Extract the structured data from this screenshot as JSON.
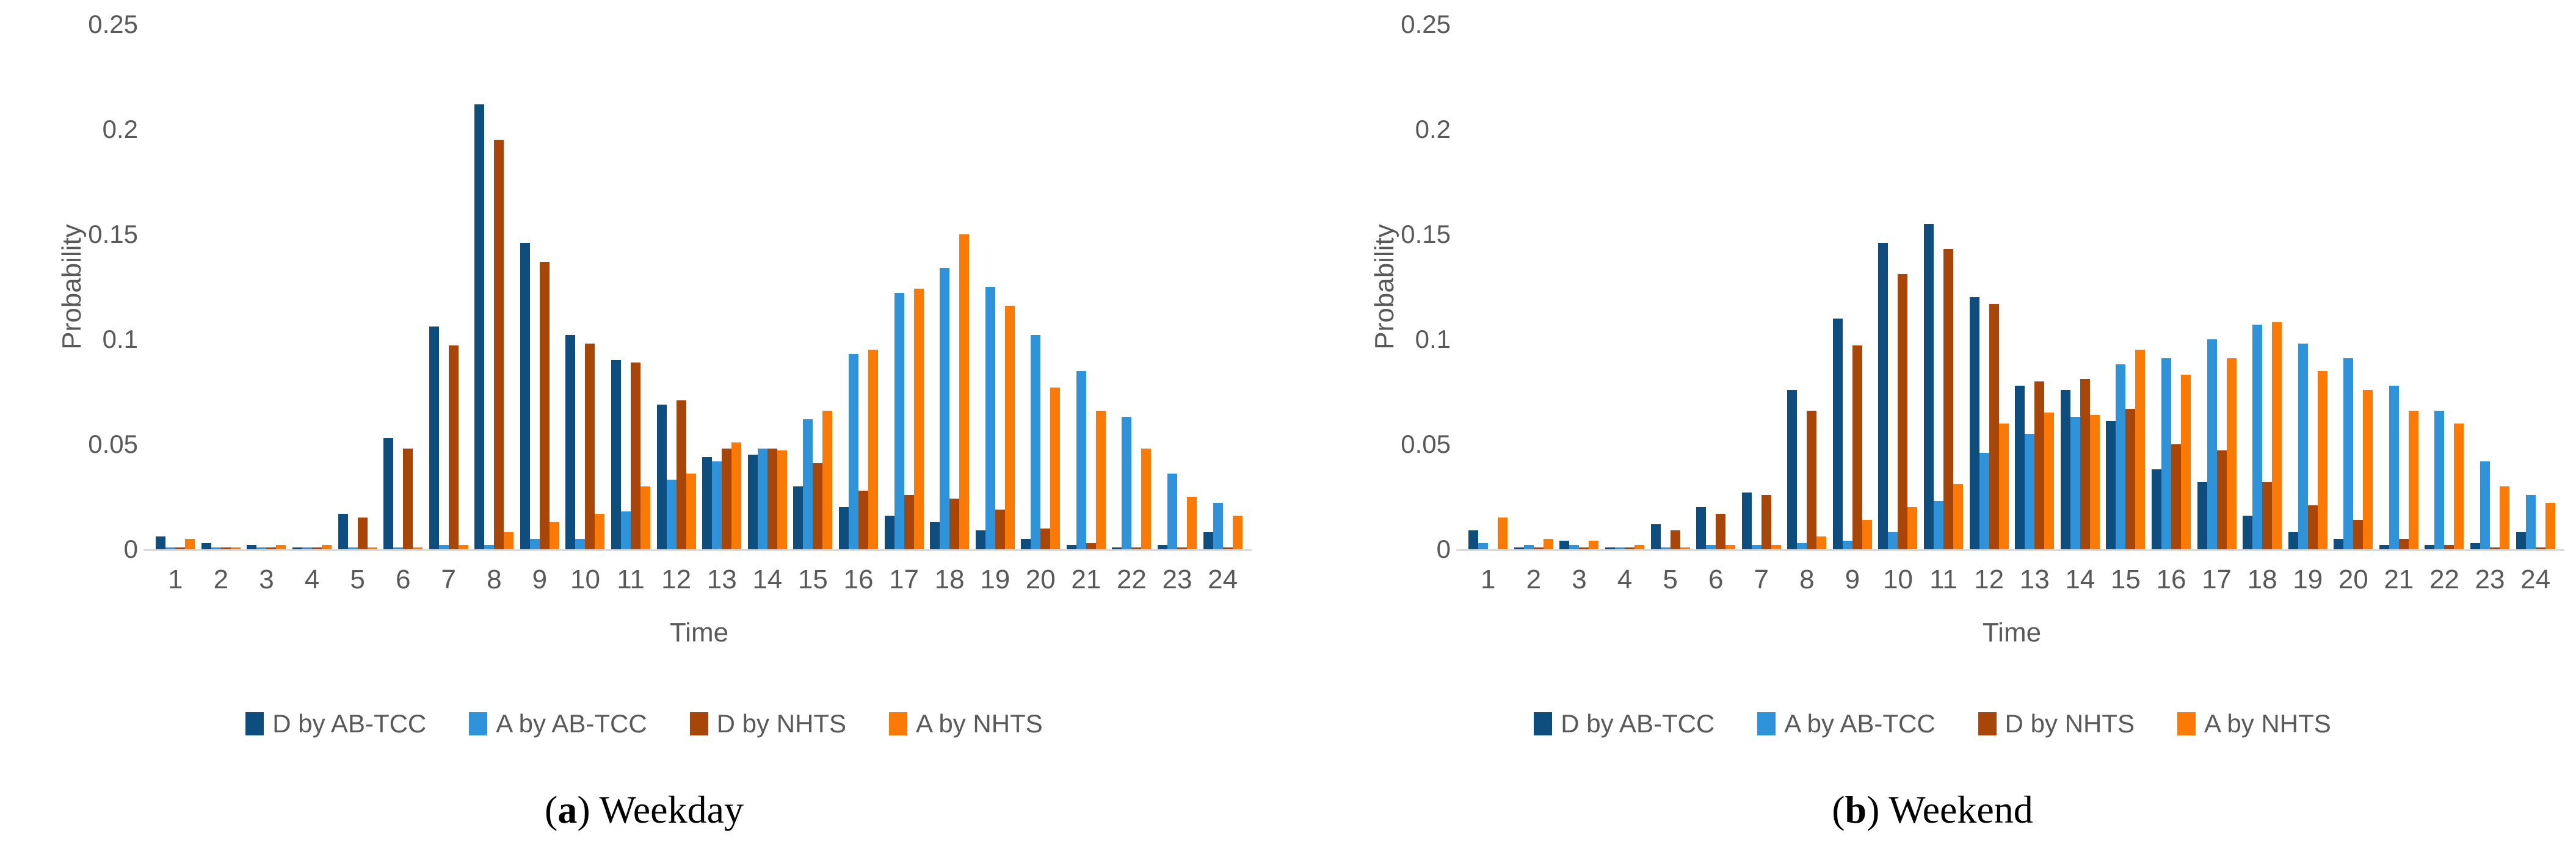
{
  "page": {
    "background": "#ffffff"
  },
  "colors": {
    "d_ab_tcc": "#0e4e7e",
    "a_ab_tcc": "#2e93d8",
    "d_nhts": "#a84508",
    "a_nhts": "#fb7905",
    "axis_text": "#595959",
    "axis_line": "#d9d9d9",
    "caption_text": "#000000"
  },
  "y_axis": {
    "label": "Probability",
    "min": 0,
    "max": 0.25,
    "tick_labels": [
      "0.25",
      "0.2",
      "0.15",
      "0.1",
      "0.05",
      "0"
    ],
    "tick_values": [
      0.25,
      0.2,
      0.15,
      0.1,
      0.05,
      0
    ]
  },
  "x_axis": {
    "label": "Time",
    "tick_labels": [
      "1",
      "2",
      "3",
      "4",
      "5",
      "6",
      "7",
      "8",
      "9",
      "10",
      "11",
      "12",
      "13",
      "14",
      "15",
      "16",
      "17",
      "18",
      "19",
      "20",
      "21",
      "22",
      "23",
      "24"
    ]
  },
  "legend": {
    "items": [
      {
        "label": "D by AB-TCC",
        "color": "#0e4e7e"
      },
      {
        "label": "A by AB-TCC",
        "color": "#2e93d8"
      },
      {
        "label": "D by NHTS",
        "color": "#a84508"
      },
      {
        "label": "A by NHTS",
        "color": "#fb7905"
      }
    ]
  },
  "chart_data": [
    {
      "type": "bar",
      "caption_letter": "a",
      "caption_text": "Weekday",
      "xlabel": "Time",
      "ylabel": "Probability",
      "ylim": [
        0,
        0.25
      ],
      "grid": false,
      "legend_position": "bottom",
      "categories": [
        1,
        2,
        3,
        4,
        5,
        6,
        7,
        8,
        9,
        10,
        11,
        12,
        13,
        14,
        15,
        16,
        17,
        18,
        19,
        20,
        21,
        22,
        23,
        24
      ],
      "series": [
        {
          "name": "D by AB-TCC",
          "color": "#0e4e7e",
          "values": [
            0.006,
            0.003,
            0.002,
            0.001,
            0.017,
            0.053,
            0.106,
            0.212,
            0.146,
            0.102,
            0.09,
            0.069,
            0.044,
            0.045,
            0.03,
            0.02,
            0.016,
            0.013,
            0.009,
            0.005,
            0.002,
            0.001,
            0.002,
            0.008
          ]
        },
        {
          "name": "A by AB-TCC",
          "color": "#2e93d8",
          "values": [
            0.001,
            0.001,
            0.001,
            0.001,
            0.001,
            0.001,
            0.002,
            0.002,
            0.005,
            0.005,
            0.018,
            0.033,
            0.042,
            0.048,
            0.062,
            0.093,
            0.122,
            0.134,
            0.125,
            0.102,
            0.085,
            0.063,
            0.036,
            0.022
          ]
        },
        {
          "name": "D by NHTS",
          "color": "#a84508",
          "values": [
            0.001,
            0.001,
            0.001,
            0.001,
            0.015,
            0.048,
            0.097,
            0.195,
            0.137,
            0.098,
            0.089,
            0.071,
            0.048,
            0.048,
            0.041,
            0.028,
            0.026,
            0.024,
            0.019,
            0.01,
            0.003,
            0.001,
            0.001,
            0.001
          ]
        },
        {
          "name": "A by NHTS",
          "color": "#fb7905",
          "values": [
            0.005,
            0.001,
            0.002,
            0.002,
            0.001,
            0.001,
            0.002,
            0.008,
            0.013,
            0.017,
            0.03,
            0.036,
            0.051,
            0.047,
            0.066,
            0.095,
            0.124,
            0.15,
            0.116,
            0.077,
            0.066,
            0.048,
            0.025,
            0.016
          ]
        }
      ]
    },
    {
      "type": "bar",
      "caption_letter": "b",
      "caption_text": "Weekend",
      "xlabel": "Time",
      "ylabel": "Probability",
      "ylim": [
        0,
        0.25
      ],
      "grid": false,
      "legend_position": "bottom",
      "categories": [
        1,
        2,
        3,
        4,
        5,
        6,
        7,
        8,
        9,
        10,
        11,
        12,
        13,
        14,
        15,
        16,
        17,
        18,
        19,
        20,
        21,
        22,
        23,
        24
      ],
      "series": [
        {
          "name": "D by AB-TCC",
          "color": "#0e4e7e",
          "values": [
            0.009,
            0.001,
            0.004,
            0.001,
            0.012,
            0.02,
            0.027,
            0.076,
            0.11,
            0.146,
            0.155,
            0.12,
            0.078,
            0.076,
            0.061,
            0.038,
            0.032,
            0.016,
            0.008,
            0.005,
            0.002,
            0.002,
            0.003,
            0.008
          ]
        },
        {
          "name": "A by AB-TCC",
          "color": "#2e93d8",
          "values": [
            0.003,
            0.002,
            0.002,
            0.001,
            0.001,
            0.002,
            0.002,
            0.003,
            0.004,
            0.008,
            0.023,
            0.046,
            0.055,
            0.063,
            0.088,
            0.091,
            0.1,
            0.107,
            0.098,
            0.091,
            0.078,
            0.066,
            0.042,
            0.026
          ]
        },
        {
          "name": "D by NHTS",
          "color": "#a84508",
          "values": [
            0.0,
            0.001,
            0.001,
            0.001,
            0.009,
            0.017,
            0.026,
            0.066,
            0.097,
            0.131,
            0.143,
            0.117,
            0.08,
            0.081,
            0.067,
            0.05,
            0.047,
            0.032,
            0.021,
            0.014,
            0.005,
            0.002,
            0.001,
            0.001
          ]
        },
        {
          "name": "A by NHTS",
          "color": "#fb7905",
          "values": [
            0.015,
            0.005,
            0.004,
            0.002,
            0.001,
            0.002,
            0.002,
            0.006,
            0.014,
            0.02,
            0.031,
            0.06,
            0.065,
            0.064,
            0.095,
            0.083,
            0.091,
            0.108,
            0.085,
            0.076,
            0.066,
            0.06,
            0.03,
            0.022
          ]
        }
      ]
    }
  ]
}
